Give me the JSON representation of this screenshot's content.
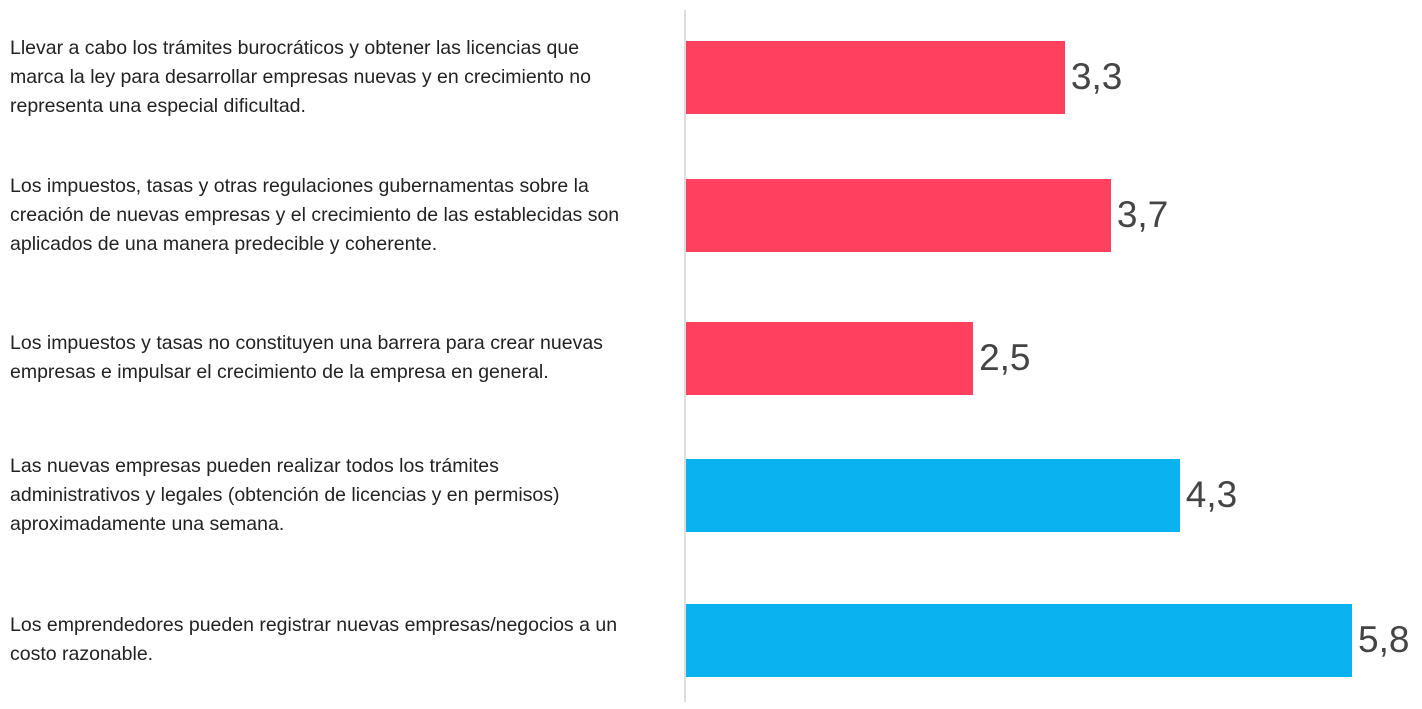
{
  "chart_data": {
    "type": "barh",
    "categories": [
      "Llevar a cabo los trámites burocráticos y obtener las licencias que marca la ley para desarrollar empresas nuevas y en crecimiento no representa una especial dificultad.",
      "Los impuestos, tasas y otras regulaciones gubernamentas sobre la creación de nuevas empresas y el crecimiento de las establecidas son aplicados de una manera predecible y coherente.",
      "Los impuestos y tasas no constituyen una barrera para crear nuevas empresas e impulsar el crecimiento de la empresa en general.",
      "Las nuevas empresas pueden realizar todos los trámites administrativos y legales (obtención de licencias y en permisos) aproximadamente una semana.",
      "Los emprendedores pueden registrar nuevas empresas/negocios a un costo razonable."
    ],
    "values": [
      3.3,
      3.7,
      2.5,
      4.3,
      5.8
    ],
    "value_labels": [
      "3,3",
      "3,7",
      "2,5",
      "4,3",
      "5,8"
    ],
    "colors": [
      "#ff405f",
      "#ff405f",
      "#ff405f",
      "#0ab2f0",
      "#0ab2f0"
    ],
    "xlim": [
      0,
      5.8
    ]
  }
}
